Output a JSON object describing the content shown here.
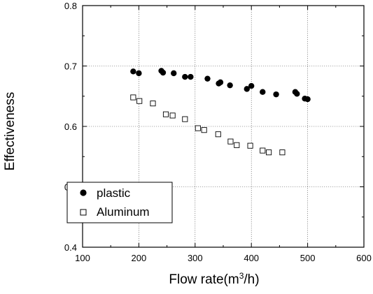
{
  "chart_data": {
    "type": "scatter",
    "title": "",
    "xlabel_main": "Flow rate(m",
    "xlabel_sup": "3",
    "xlabel_tail": "/h)",
    "ylabel": "Effectiveness",
    "xlim": [
      100,
      600
    ],
    "ylim": [
      0.4,
      0.8
    ],
    "x_ticks": [
      "100",
      "200",
      "300",
      "400",
      "500",
      "600"
    ],
    "y_ticks": [
      "0.4",
      "0.5",
      "0.6",
      "0.7",
      "0.8"
    ],
    "grid": true,
    "legend_position": "bottom-left",
    "series": [
      {
        "name": "plastic",
        "marker": "filled-circle",
        "x": [
          190,
          200,
          240,
          243,
          262,
          282,
          292,
          322,
          342,
          345,
          362,
          392,
          400,
          420,
          444,
          478,
          481,
          495,
          500
        ],
        "y": [
          0.691,
          0.688,
          0.692,
          0.689,
          0.688,
          0.682,
          0.682,
          0.679,
          0.671,
          0.673,
          0.668,
          0.662,
          0.667,
          0.657,
          0.653,
          0.657,
          0.654,
          0.646,
          0.645
        ]
      },
      {
        "name": "Aluminum",
        "marker": "open-square",
        "x": [
          190,
          201,
          225,
          248,
          260,
          282,
          305,
          316,
          341,
          363,
          374,
          398,
          420,
          431,
          455
        ],
        "y": [
          0.648,
          0.642,
          0.638,
          0.62,
          0.618,
          0.612,
          0.597,
          0.594,
          0.587,
          0.575,
          0.569,
          0.568,
          0.56,
          0.557,
          0.557
        ]
      }
    ]
  }
}
